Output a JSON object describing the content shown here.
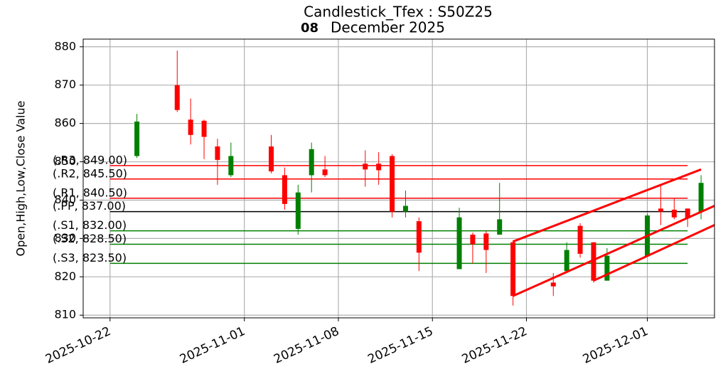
{
  "chart_data": {
    "type": "candlestick",
    "title": "Candlestick_Tfex : S50Z25",
    "subtitle_day": "08",
    "subtitle_rest": "December  2025",
    "y_label": "Open,High,Low,Close Value",
    "x": [
      "2025-10-24",
      "2025-10-27",
      "2025-10-28",
      "2025-10-29",
      "2025-10-30",
      "2025-10-31",
      "2025-11-03",
      "2025-11-04",
      "2025-11-05",
      "2025-11-06",
      "2025-11-07",
      "2025-11-10",
      "2025-11-11",
      "2025-11-12",
      "2025-11-13",
      "2025-11-14",
      "2025-11-17",
      "2025-11-18",
      "2025-11-19",
      "2025-11-20",
      "2025-11-21",
      "2025-11-24",
      "2025-11-25",
      "2025-11-26",
      "2025-11-27",
      "2025-11-28",
      "2025-12-01",
      "2025-12-02",
      "2025-12-03",
      "2025-12-04",
      "2025-12-05"
    ],
    "open": [
      851.5,
      870,
      861,
      860.7,
      854,
      846.5,
      854,
      846.5,
      832.5,
      846.5,
      848,
      849.5,
      849.5,
      851.5,
      837,
      834.5,
      822,
      831,
      831.3,
      831,
      829,
      818.5,
      821.5,
      833.3,
      829,
      819,
      825.5,
      837.8,
      837.5,
      837.8,
      837
    ],
    "high": [
      862.5,
      879,
      866.5,
      861,
      856,
      855,
      857,
      848.5,
      844,
      855,
      851.5,
      853,
      852.5,
      852,
      842.5,
      835.5,
      838,
      831.5,
      832,
      844.5,
      829.5,
      821,
      829,
      834,
      829,
      827.5,
      836.5,
      844,
      840.5,
      837.8,
      846.5
    ],
    "low": [
      851,
      863,
      854.5,
      850.7,
      844,
      846,
      847,
      837.5,
      831,
      842,
      846,
      843.5,
      844,
      835.5,
      835.5,
      821.5,
      822,
      823.5,
      821,
      831,
      812.5,
      815,
      821,
      825,
      818.5,
      819,
      825.5,
      833.5,
      835,
      833,
      835
    ],
    "close": [
      860.5,
      863.5,
      857,
      856.5,
      850.5,
      851.5,
      847.5,
      839,
      842,
      853.3,
      846.5,
      848,
      847.8,
      837,
      838.5,
      826.3,
      835.5,
      828.5,
      827,
      835,
      815,
      817.5,
      827,
      826,
      819,
      825.5,
      836,
      837,
      835.5,
      835.3,
      844.5
    ],
    "up_color": "#008000",
    "down_color": "#ff0000",
    "levels": [
      {
        "label": "(.R3,  849.00)",
        "value": 849,
        "color": "#ff0000"
      },
      {
        "label": "(.R2,  845.50)",
        "value": 845.5,
        "color": "#ff0000"
      },
      {
        "label": "(.R1,  840.50)",
        "value": 840.5,
        "color": "#ff0000"
      },
      {
        "label": "(.PP,  837.00)",
        "value": 837,
        "color": "#000000"
      },
      {
        "label": "(.S1,  832.00)",
        "value": 832,
        "color": "#008000"
      },
      {
        "label": "(.S2,  828.50)",
        "value": 828.5,
        "color": "#008000"
      },
      {
        "label": "(.S3,  823.50)",
        "value": 823.5,
        "color": "#008000"
      }
    ],
    "levels_x": [
      "2025-10-22",
      "2025-12-04"
    ],
    "trend_lines": [
      {
        "x": [
          "2025-11-21",
          "2025-12-05"
        ],
        "values": [
          829.2,
          848
        ],
        "color": "#ff0000"
      },
      {
        "x": [
          "2025-11-21",
          "2025-12-06"
        ],
        "values": [
          815,
          838.5
        ],
        "color": "#ff0000"
      },
      {
        "x": [
          "2025-11-27",
          "2025-12-06"
        ],
        "values": [
          819,
          833.5
        ],
        "color": "#ff0000"
      }
    ],
    "xlim": [
      "2025-10-20",
      "2025-12-06"
    ],
    "xticks": [
      "2025-10-22",
      "2025-11-01",
      "2025-11-08",
      "2025-11-15",
      "2025-11-22",
      "2025-12-01"
    ],
    "ylim": [
      809.3,
      882
    ],
    "yticks": [
      810,
      820,
      830,
      840,
      850,
      860,
      870,
      880
    ],
    "grid": true
  }
}
